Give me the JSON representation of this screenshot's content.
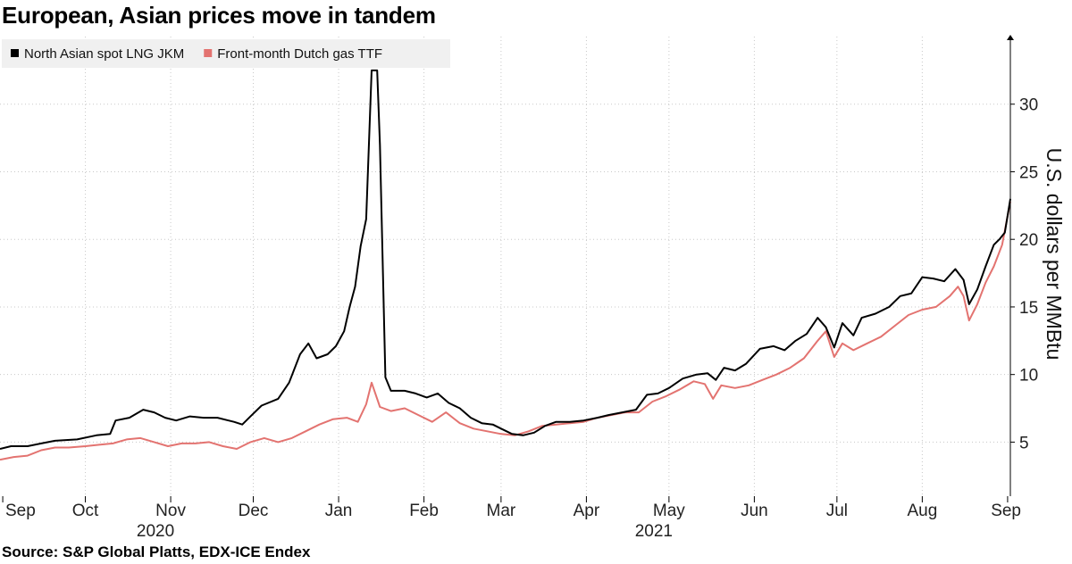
{
  "title": "European, Asian prices move in tandem",
  "source": "Source: S&P Global Platts, EDX-ICE Endex",
  "chart_data": {
    "type": "line",
    "ylabel": "U.S. dollars per MMBtu",
    "yaxis_position": "right",
    "ylim": [
      1,
      35
    ],
    "yticks": [
      5,
      10,
      15,
      20,
      25,
      30
    ],
    "grid": "vertical and horizontal dotted",
    "legend_position": "top-left",
    "x_range": [
      "2020-08-31",
      "2021-09-02"
    ],
    "x_months": [
      {
        "label": "Sep",
        "date": "2020-09-01"
      },
      {
        "label": "Oct",
        "date": "2020-10-01"
      },
      {
        "label": "Nov",
        "date": "2020-11-01"
      },
      {
        "label": "Dec",
        "date": "2020-12-01"
      },
      {
        "label": "Jan",
        "date": "2021-01-01"
      },
      {
        "label": "Feb",
        "date": "2021-02-01"
      },
      {
        "label": "Mar",
        "date": "2021-03-01"
      },
      {
        "label": "Apr",
        "date": "2021-04-01"
      },
      {
        "label": "May",
        "date": "2021-05-01"
      },
      {
        "label": "Jun",
        "date": "2021-06-01"
      },
      {
        "label": "Jul",
        "date": "2021-07-01"
      },
      {
        "label": "Aug",
        "date": "2021-08-01"
      },
      {
        "label": "Sep",
        "date": "2021-09-01"
      }
    ],
    "x_years": [
      {
        "label": "2020",
        "date": "2020-11-01"
      },
      {
        "label": "2021",
        "date": "2021-05-01"
      }
    ],
    "series": [
      {
        "name": "North Asian spot LNG JKM",
        "color": "#000000",
        "points": [
          [
            "2020-08-31",
            4.5
          ],
          [
            "2020-09-04",
            4.7
          ],
          [
            "2020-09-10",
            4.7
          ],
          [
            "2020-09-15",
            4.9
          ],
          [
            "2020-09-20",
            5.1
          ],
          [
            "2020-09-28",
            5.2
          ],
          [
            "2020-10-05",
            5.5
          ],
          [
            "2020-10-10",
            5.6
          ],
          [
            "2020-10-12",
            6.6
          ],
          [
            "2020-10-17",
            6.8
          ],
          [
            "2020-10-22",
            7.4
          ],
          [
            "2020-10-26",
            7.2
          ],
          [
            "2020-10-30",
            6.8
          ],
          [
            "2020-11-03",
            6.6
          ],
          [
            "2020-11-08",
            6.9
          ],
          [
            "2020-11-13",
            6.8
          ],
          [
            "2020-11-18",
            6.8
          ],
          [
            "2020-11-24",
            6.5
          ],
          [
            "2020-11-27",
            6.3
          ],
          [
            "2020-11-30",
            6.9
          ],
          [
            "2020-12-04",
            7.7
          ],
          [
            "2020-12-10",
            8.2
          ],
          [
            "2020-12-14",
            9.4
          ],
          [
            "2020-12-18",
            11.5
          ],
          [
            "2020-12-21",
            12.3
          ],
          [
            "2020-12-24",
            11.2
          ],
          [
            "2020-12-28",
            11.5
          ],
          [
            "2020-12-31",
            12.1
          ],
          [
            "2021-01-03",
            13.2
          ],
          [
            "2021-01-05",
            15.0
          ],
          [
            "2021-01-07",
            16.5
          ],
          [
            "2021-01-09",
            19.5
          ],
          [
            "2021-01-11",
            21.5
          ],
          [
            "2021-01-13",
            32.5
          ],
          [
            "2021-01-15",
            32.5
          ],
          [
            "2021-01-16",
            27.0
          ],
          [
            "2021-01-18",
            9.8
          ],
          [
            "2021-01-20",
            8.8
          ],
          [
            "2021-01-25",
            8.8
          ],
          [
            "2021-01-29",
            8.6
          ],
          [
            "2021-02-02",
            8.3
          ],
          [
            "2021-02-06",
            8.6
          ],
          [
            "2021-02-10",
            7.9
          ],
          [
            "2021-02-14",
            7.5
          ],
          [
            "2021-02-18",
            6.8
          ],
          [
            "2021-02-22",
            6.4
          ],
          [
            "2021-02-26",
            6.3
          ],
          [
            "2021-03-01",
            6.0
          ],
          [
            "2021-03-05",
            5.6
          ],
          [
            "2021-03-09",
            5.5
          ],
          [
            "2021-03-13",
            5.7
          ],
          [
            "2021-03-17",
            6.2
          ],
          [
            "2021-03-21",
            6.5
          ],
          [
            "2021-03-26",
            6.5
          ],
          [
            "2021-03-31",
            6.6
          ],
          [
            "2021-04-05",
            6.8
          ],
          [
            "2021-04-09",
            7.0
          ],
          [
            "2021-04-14",
            7.2
          ],
          [
            "2021-04-19",
            7.4
          ],
          [
            "2021-04-23",
            8.5
          ],
          [
            "2021-04-27",
            8.6
          ],
          [
            "2021-05-01",
            9.0
          ],
          [
            "2021-05-06",
            9.7
          ],
          [
            "2021-05-11",
            10.0
          ],
          [
            "2021-05-15",
            10.1
          ],
          [
            "2021-05-18",
            9.6
          ],
          [
            "2021-05-21",
            10.5
          ],
          [
            "2021-05-25",
            10.3
          ],
          [
            "2021-05-29",
            10.8
          ],
          [
            "2021-06-03",
            11.9
          ],
          [
            "2021-06-08",
            12.1
          ],
          [
            "2021-06-12",
            11.8
          ],
          [
            "2021-06-16",
            12.5
          ],
          [
            "2021-06-20",
            13.0
          ],
          [
            "2021-06-24",
            14.2
          ],
          [
            "2021-06-27",
            13.5
          ],
          [
            "2021-06-30",
            12.0
          ],
          [
            "2021-07-03",
            13.8
          ],
          [
            "2021-07-07",
            12.9
          ],
          [
            "2021-07-10",
            14.2
          ],
          [
            "2021-07-15",
            14.5
          ],
          [
            "2021-07-20",
            15.0
          ],
          [
            "2021-07-24",
            15.8
          ],
          [
            "2021-07-28",
            16.0
          ],
          [
            "2021-08-01",
            17.2
          ],
          [
            "2021-08-05",
            17.1
          ],
          [
            "2021-08-09",
            16.9
          ],
          [
            "2021-08-13",
            17.8
          ],
          [
            "2021-08-16",
            17.0
          ],
          [
            "2021-08-18",
            15.2
          ],
          [
            "2021-08-21",
            16.3
          ],
          [
            "2021-08-24",
            18.0
          ],
          [
            "2021-08-27",
            19.6
          ],
          [
            "2021-08-29",
            20.0
          ],
          [
            "2021-08-31",
            20.5
          ],
          [
            "2021-09-02",
            23.0
          ]
        ]
      },
      {
        "name": "Front-month Dutch gas TTF",
        "color": "#e37370",
        "points": [
          [
            "2020-08-31",
            3.7
          ],
          [
            "2020-09-05",
            3.9
          ],
          [
            "2020-09-10",
            4.0
          ],
          [
            "2020-09-15",
            4.4
          ],
          [
            "2020-09-20",
            4.6
          ],
          [
            "2020-09-25",
            4.6
          ],
          [
            "2020-10-01",
            4.7
          ],
          [
            "2020-10-06",
            4.8
          ],
          [
            "2020-10-11",
            4.9
          ],
          [
            "2020-10-16",
            5.2
          ],
          [
            "2020-10-21",
            5.3
          ],
          [
            "2020-10-26",
            5.0
          ],
          [
            "2020-10-31",
            4.7
          ],
          [
            "2020-11-05",
            4.9
          ],
          [
            "2020-11-10",
            4.9
          ],
          [
            "2020-11-15",
            5.0
          ],
          [
            "2020-11-20",
            4.7
          ],
          [
            "2020-11-25",
            4.5
          ],
          [
            "2020-11-30",
            5.0
          ],
          [
            "2020-12-05",
            5.3
          ],
          [
            "2020-12-10",
            5.0
          ],
          [
            "2020-12-15",
            5.3
          ],
          [
            "2020-12-20",
            5.8
          ],
          [
            "2020-12-25",
            6.3
          ],
          [
            "2020-12-30",
            6.7
          ],
          [
            "2021-01-04",
            6.8
          ],
          [
            "2021-01-08",
            6.5
          ],
          [
            "2021-01-11",
            7.8
          ],
          [
            "2021-01-13",
            9.4
          ],
          [
            "2021-01-16",
            7.6
          ],
          [
            "2021-01-20",
            7.3
          ],
          [
            "2021-01-25",
            7.5
          ],
          [
            "2021-01-30",
            7.0
          ],
          [
            "2021-02-04",
            6.5
          ],
          [
            "2021-02-09",
            7.2
          ],
          [
            "2021-02-14",
            6.4
          ],
          [
            "2021-02-19",
            6.0
          ],
          [
            "2021-02-24",
            5.8
          ],
          [
            "2021-03-01",
            5.6
          ],
          [
            "2021-03-06",
            5.5
          ],
          [
            "2021-03-11",
            5.8
          ],
          [
            "2021-03-16",
            6.2
          ],
          [
            "2021-03-21",
            6.3
          ],
          [
            "2021-03-26",
            6.4
          ],
          [
            "2021-03-31",
            6.5
          ],
          [
            "2021-04-05",
            6.8
          ],
          [
            "2021-04-10",
            7.0
          ],
          [
            "2021-04-15",
            7.2
          ],
          [
            "2021-04-20",
            7.2
          ],
          [
            "2021-04-25",
            8.0
          ],
          [
            "2021-04-30",
            8.4
          ],
          [
            "2021-05-05",
            8.9
          ],
          [
            "2021-05-10",
            9.5
          ],
          [
            "2021-05-14",
            9.3
          ],
          [
            "2021-05-17",
            8.2
          ],
          [
            "2021-05-20",
            9.2
          ],
          [
            "2021-05-25",
            9.0
          ],
          [
            "2021-05-30",
            9.2
          ],
          [
            "2021-06-04",
            9.6
          ],
          [
            "2021-06-09",
            10.0
          ],
          [
            "2021-06-14",
            10.5
          ],
          [
            "2021-06-19",
            11.2
          ],
          [
            "2021-06-24",
            12.5
          ],
          [
            "2021-06-27",
            13.2
          ],
          [
            "2021-06-30",
            11.3
          ],
          [
            "2021-07-03",
            12.3
          ],
          [
            "2021-07-07",
            11.8
          ],
          [
            "2021-07-12",
            12.3
          ],
          [
            "2021-07-17",
            12.8
          ],
          [
            "2021-07-22",
            13.6
          ],
          [
            "2021-07-27",
            14.4
          ],
          [
            "2021-08-01",
            14.8
          ],
          [
            "2021-08-06",
            15.0
          ],
          [
            "2021-08-11",
            15.8
          ],
          [
            "2021-08-14",
            16.5
          ],
          [
            "2021-08-16",
            15.8
          ],
          [
            "2021-08-18",
            14.0
          ],
          [
            "2021-08-21",
            15.2
          ],
          [
            "2021-08-24",
            16.8
          ],
          [
            "2021-08-27",
            18.0
          ],
          [
            "2021-08-30",
            19.6
          ],
          [
            "2021-09-02",
            22.8
          ]
        ]
      }
    ]
  }
}
